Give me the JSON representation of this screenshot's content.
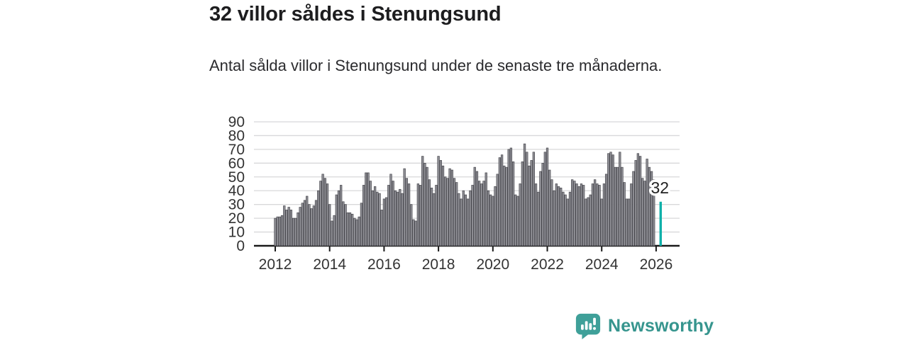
{
  "title": "32 villor såldes i Stenungsund",
  "subtitle": "Antal sålda villor i Stenungsund under de senaste tre månaderna.",
  "chart_data": {
    "type": "bar",
    "title": "32 villor såldes i Stenungsund",
    "xlabel": "",
    "ylabel": "",
    "ylim": [
      0,
      90
    ],
    "yticks": [
      0,
      10,
      20,
      30,
      40,
      50,
      60,
      70,
      80,
      90
    ],
    "grid": true,
    "x_unit": "month",
    "x_start": "2012-01",
    "xticks": [
      {
        "label": "2012",
        "month_index": 0
      },
      {
        "label": "2014",
        "month_index": 24
      },
      {
        "label": "2016",
        "month_index": 48
      },
      {
        "label": "2018",
        "month_index": 72
      },
      {
        "label": "2020",
        "month_index": 96
      },
      {
        "label": "2022",
        "month_index": 120
      },
      {
        "label": "2024",
        "month_index": 144
      },
      {
        "label": "2026",
        "month_index": 168
      }
    ],
    "values": [
      20,
      21,
      21,
      22,
      29,
      26,
      28,
      26,
      20,
      20,
      24,
      28,
      31,
      33,
      36,
      30,
      27,
      29,
      33,
      40,
      47,
      52,
      49,
      45,
      30,
      18,
      22,
      37,
      40,
      44,
      32,
      30,
      24,
      24,
      23,
      20,
      19,
      21,
      31,
      44,
      53,
      53,
      47,
      40,
      43,
      39,
      38,
      26,
      34,
      35,
      44,
      52,
      47,
      40,
      39,
      41,
      38,
      56,
      49,
      45,
      30,
      19,
      18,
      45,
      44,
      65,
      60,
      57,
      48,
      42,
      38,
      44,
      65,
      62,
      58,
      50,
      49,
      56,
      55,
      49,
      46,
      38,
      34,
      40,
      37,
      34,
      40,
      44,
      57,
      54,
      47,
      45,
      47,
      53,
      40,
      37,
      36,
      43,
      52,
      64,
      66,
      58,
      57,
      70,
      71,
      61,
      37,
      36,
      45,
      61,
      74,
      68,
      58,
      62,
      68,
      45,
      39,
      54,
      60,
      68,
      71,
      55,
      48,
      40,
      45,
      43,
      42,
      39,
      37,
      34,
      39,
      48,
      47,
      45,
      43,
      45,
      44,
      34,
      35,
      37,
      45,
      48,
      45,
      44,
      34,
      45,
      52,
      67,
      68,
      66,
      57,
      57,
      68,
      57,
      46,
      34,
      34,
      45,
      54,
      62,
      67,
      65,
      49,
      47,
      63,
      57,
      54,
      48
    ],
    "highlight": {
      "label": "32",
      "value": 32,
      "month_index": 170,
      "color": "#0fb0a9"
    },
    "bar_color": "#919197",
    "bar_stroke": "#46464c",
    "axis_color": "#1a1a1a",
    "grid_color": "#d8d8da",
    "tick_label_color": "#333333"
  },
  "branding": {
    "logo_text": "Newsworthy",
    "logo_icon": "bar-chart-speech-bubble-icon",
    "color": "#3fa099"
  }
}
